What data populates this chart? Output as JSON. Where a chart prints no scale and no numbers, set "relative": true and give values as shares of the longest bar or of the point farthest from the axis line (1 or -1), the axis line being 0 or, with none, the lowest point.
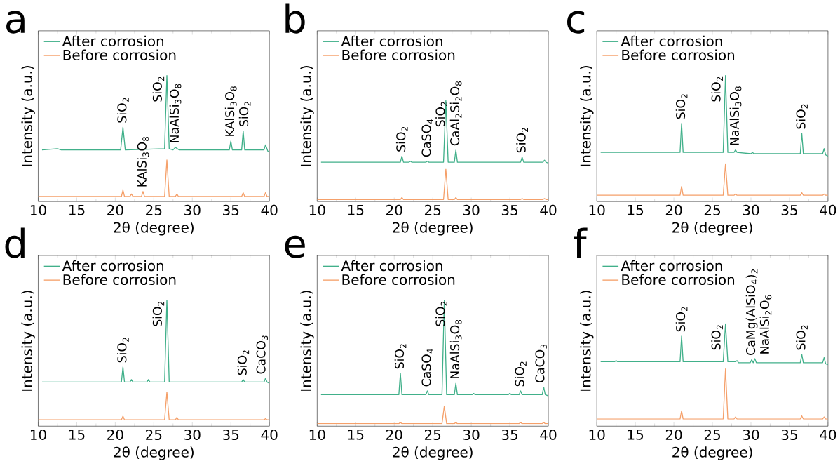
{
  "chart_data": [
    {
      "type": "line",
      "title": "a",
      "xlabel": "2θ (degree)",
      "ylabel": "Intensity (a.u.)",
      "relative": true,
      "xlim": [
        10,
        40
      ],
      "xticks": [
        10,
        15,
        20,
        25,
        30,
        35,
        40
      ],
      "legend": "top left",
      "series": [
        {
          "name": "After corrosion",
          "color": "#41b08a",
          "x": [
            10.5,
            12.5,
            13,
            20.7,
            21.0,
            21.3,
            26.4,
            26.7,
            27.0,
            27.5,
            27.8,
            28.3,
            34.8,
            35.0,
            35.2,
            36.4,
            36.6,
            36.8,
            39.3,
            39.5,
            39.8,
            40
          ],
          "values": [
            0.41,
            0.42,
            0.41,
            0.41,
            0.59,
            0.41,
            0.42,
            1.0,
            0.42,
            0.41,
            0.43,
            0.41,
            0.41,
            0.48,
            0.41,
            0.41,
            0.56,
            0.41,
            0.41,
            0.45,
            0.4,
            0.39
          ]
        },
        {
          "name": "Before corrosion",
          "color": "#f5a06a",
          "x": [
            10,
            20.8,
            21.0,
            21.2,
            21.9,
            22.1,
            22.3,
            23.4,
            23.6,
            23.8,
            26.4,
            26.7,
            27.0,
            27.8,
            28.0,
            28.2,
            36.4,
            36.6,
            36.8,
            39.3,
            39.5,
            39.7,
            40
          ],
          "values": [
            0.04,
            0.04,
            0.09,
            0.04,
            0.04,
            0.06,
            0.04,
            0.04,
            0.08,
            0.04,
            0.04,
            0.33,
            0.04,
            0.04,
            0.06,
            0.04,
            0.04,
            0.07,
            0.04,
            0.04,
            0.07,
            0.04,
            0.04
          ]
        }
      ],
      "annotations": [
        {
          "text": "SiO$_{2}$",
          "x": 21.0,
          "y": 0.59
        },
        {
          "text": "KAlSi$_{3}$O$_{8}$",
          "x": 23.6,
          "y": 0.08
        },
        {
          "text": "SiO$_{2}$",
          "x": 26.7,
          "y": 1.0
        },
        {
          "text": "NaAlSi$_{3}$O$_{8}$",
          "x": 27.8,
          "y": 0.43
        },
        {
          "text": "KAlSi$_{3}$O$_{8}$",
          "x": 35.0,
          "y": 0.48
        },
        {
          "text": "SiO$_{2}$",
          "x": 36.6,
          "y": 0.56
        }
      ]
    },
    {
      "type": "line",
      "title": "b",
      "xlabel": "2θ (degree)",
      "ylabel": "Intensity (a.u.)",
      "relative": true,
      "xlim": [
        10,
        40
      ],
      "xticks": [
        10,
        15,
        20,
        25,
        30,
        35,
        40
      ],
      "legend": "top left",
      "series": [
        {
          "name": "After corrosion",
          "color": "#41b08a",
          "x": [
            10.5,
            20.8,
            21.0,
            21.2,
            21.9,
            22.1,
            22.3,
            24.1,
            24.3,
            24.5,
            26.4,
            26.7,
            27.0,
            27.8,
            28.0,
            28.2,
            36.4,
            36.6,
            36.8,
            39.3,
            39.5,
            39.7,
            40
          ],
          "values": [
            0.39,
            0.39,
            0.45,
            0.39,
            0.39,
            0.4,
            0.39,
            0.39,
            0.4,
            0.39,
            0.39,
            1.0,
            0.39,
            0.39,
            0.51,
            0.39,
            0.39,
            0.44,
            0.39,
            0.39,
            0.41,
            0.39,
            0.38
          ]
        },
        {
          "name": "Before corrosion",
          "color": "#f5a06a",
          "x": [
            10,
            20.8,
            21.0,
            21.2,
            26.4,
            26.7,
            27.0,
            27.8,
            28.0,
            28.2,
            36.4,
            36.6,
            36.8,
            39.3,
            39.5,
            39.7,
            40
          ],
          "values": [
            0.02,
            0.02,
            0.04,
            0.02,
            0.02,
            0.32,
            0.02,
            0.02,
            0.04,
            0.02,
            0.02,
            0.03,
            0.02,
            0.02,
            0.03,
            0.02,
            0.02
          ]
        }
      ],
      "annotations": [
        {
          "text": "SiO$_{2}$",
          "x": 21.0,
          "y": 0.45
        },
        {
          "text": "CaSO$_{4}$",
          "x": 24.3,
          "y": 0.4
        },
        {
          "text": "SiO$_{2}$",
          "x": 26.7,
          "y": 1.0
        },
        {
          "text": "CaAl$_{2}$Si$_{2}$O$_{8}$",
          "x": 28.0,
          "y": 0.51
        },
        {
          "text": "SiO$_{2}$",
          "x": 36.6,
          "y": 0.44
        }
      ]
    },
    {
      "type": "line",
      "title": "c",
      "xlabel": "2θ (degree)",
      "ylabel": "Intensity (a.u.)",
      "relative": true,
      "xlim": [
        10,
        40
      ],
      "xticks": [
        10,
        15,
        20,
        25,
        30,
        35,
        40
      ],
      "legend": "top left",
      "series": [
        {
          "name": "After corrosion",
          "color": "#41b08a",
          "x": [
            10.5,
            20.8,
            21.0,
            21.2,
            26.4,
            26.7,
            27.0,
            27.8,
            28.0,
            28.2,
            30.0,
            30.2,
            30.4,
            36.4,
            36.6,
            36.8,
            39.3,
            39.5,
            39.7,
            40
          ],
          "values": [
            0.39,
            0.39,
            0.62,
            0.39,
            0.39,
            1.0,
            0.39,
            0.39,
            0.41,
            0.39,
            0.38,
            0.39,
            0.38,
            0.38,
            0.54,
            0.38,
            0.38,
            0.42,
            0.37,
            0.36
          ]
        },
        {
          "name": "Before corrosion",
          "color": "#f5a06a",
          "x": [
            10,
            20.8,
            21.0,
            21.2,
            26.4,
            26.7,
            27.0,
            27.8,
            28.0,
            28.2,
            36.4,
            36.6,
            36.8,
            39.3,
            39.5,
            39.7,
            40
          ],
          "values": [
            0.05,
            0.05,
            0.12,
            0.05,
            0.05,
            0.3,
            0.05,
            0.05,
            0.06,
            0.05,
            0.05,
            0.07,
            0.05,
            0.05,
            0.06,
            0.05,
            0.05
          ]
        }
      ],
      "annotations": [
        {
          "text": "SiO$_{2}$",
          "x": 21.0,
          "y": 0.62
        },
        {
          "text": "SiO$_{2}$",
          "x": 26.7,
          "y": 1.0
        },
        {
          "text": "NaAlSi$_{3}$O$_{8}$",
          "x": 28.0,
          "y": 0.41
        },
        {
          "text": "SiO$_{2}$",
          "x": 36.6,
          "y": 0.54
        }
      ]
    },
    {
      "type": "line",
      "title": "d",
      "xlabel": "2θ (degree)",
      "ylabel": "Intensity (a.u.)",
      "relative": true,
      "xlim": [
        10,
        40
      ],
      "xticks": [
        10,
        15,
        20,
        25,
        30,
        35,
        40
      ],
      "legend": "top left",
      "series": [
        {
          "name": "After corrosion",
          "color": "#41b08a",
          "x": [
            10.5,
            20.8,
            21.0,
            21.2,
            21.9,
            22.1,
            22.3,
            24.1,
            24.3,
            24.5,
            26.4,
            26.7,
            27.0,
            36.4,
            36.6,
            36.8,
            39.3,
            39.5,
            39.7,
            40
          ],
          "values": [
            0.35,
            0.35,
            0.47,
            0.35,
            0.35,
            0.37,
            0.35,
            0.35,
            0.37,
            0.35,
            0.35,
            1.0,
            0.35,
            0.35,
            0.37,
            0.35,
            0.35,
            0.38,
            0.35,
            0.34
          ]
        },
        {
          "name": "Before corrosion",
          "color": "#f5a06a",
          "x": [
            10,
            20.8,
            21.0,
            21.2,
            26.4,
            26.7,
            27.0,
            27.8,
            28.0,
            28.2,
            39.3,
            39.5,
            39.7,
            40
          ],
          "values": [
            0.05,
            0.05,
            0.08,
            0.05,
            0.05,
            0.27,
            0.05,
            0.05,
            0.07,
            0.05,
            0.05,
            0.06,
            0.05,
            0.05
          ]
        }
      ],
      "annotations": [
        {
          "text": "SiO$_{2}$",
          "x": 21.0,
          "y": 0.47
        },
        {
          "text": "SiO$_{2}$",
          "x": 26.7,
          "y": 1.0
        },
        {
          "text": "SiO$_{2}$",
          "x": 36.6,
          "y": 0.37
        },
        {
          "text": "CaCO$_{3}$",
          "x": 39.5,
          "y": 0.38
        }
      ]
    },
    {
      "type": "line",
      "title": "e",
      "xlabel": "2θ (degree)",
      "ylabel": "Intensity (a.u.)",
      "relative": true,
      "xlim": [
        10,
        40
      ],
      "xticks": [
        10,
        15,
        20,
        25,
        30,
        35,
        40
      ],
      "legend": "top left",
      "series": [
        {
          "name": "After corrosion",
          "color": "#41b08a",
          "x": [
            10.5,
            20.6,
            20.8,
            21.0,
            24.1,
            24.3,
            24.5,
            26.2,
            26.5,
            26.8,
            27.8,
            28.0,
            28.2,
            30.1,
            30.3,
            30.5,
            34.8,
            35.0,
            35.2,
            36.2,
            36.4,
            36.6,
            39.2,
            39.4,
            39.6,
            40
          ],
          "values": [
            0.25,
            0.25,
            0.42,
            0.25,
            0.25,
            0.28,
            0.25,
            0.25,
            1.0,
            0.25,
            0.25,
            0.34,
            0.25,
            0.25,
            0.26,
            0.25,
            0.25,
            0.26,
            0.25,
            0.25,
            0.28,
            0.25,
            0.25,
            0.31,
            0.25,
            0.24
          ]
        },
        {
          "name": "Before corrosion",
          "color": "#f5a06a",
          "x": [
            10,
            20.6,
            20.8,
            21.0,
            26.2,
            26.5,
            26.8,
            27.8,
            28.0,
            28.2,
            36.2,
            36.4,
            36.6,
            39.2,
            39.4,
            39.6,
            40
          ],
          "values": [
            0.02,
            0.02,
            0.03,
            0.02,
            0.02,
            0.16,
            0.02,
            0.02,
            0.03,
            0.02,
            0.02,
            0.03,
            0.02,
            0.02,
            0.03,
            0.02,
            0.02
          ]
        }
      ],
      "annotations": [
        {
          "text": "SiO$_{2}$",
          "x": 20.8,
          "y": 0.42
        },
        {
          "text": "CaSO$_{4}$",
          "x": 24.3,
          "y": 0.28
        },
        {
          "text": "SiO$_{2}$",
          "x": 26.5,
          "y": 1.0
        },
        {
          "text": "NaAlSi$_{3}$O$_{8}$",
          "x": 28.0,
          "y": 0.34
        },
        {
          "text": "SiO$_{2}$",
          "x": 36.4,
          "y": 0.28
        },
        {
          "text": "CaCO$_{3}$",
          "x": 39.4,
          "y": 0.31
        }
      ]
    },
    {
      "type": "line",
      "title": "f",
      "xlabel": "2θ (degree)",
      "ylabel": "Intensity (a.u.)",
      "relative": true,
      "xlim": [
        10,
        40
      ],
      "xticks": [
        10,
        15,
        20,
        25,
        30,
        35,
        40
      ],
      "legend": "top left",
      "series": [
        {
          "name": "After corrosion",
          "color": "#41b08a",
          "x": [
            10.5,
            12.3,
            12.5,
            12.7,
            20.8,
            21.0,
            21.2,
            26.4,
            26.7,
            27.0,
            28.0,
            28.2,
            28.4,
            29.9,
            30.1,
            30.3,
            30.5,
            30.7,
            36.4,
            36.6,
            36.8,
            39.3,
            39.5,
            39.7,
            40
          ],
          "values": [
            0.63,
            0.63,
            0.64,
            0.63,
            0.63,
            0.88,
            0.63,
            0.63,
            1.0,
            0.63,
            0.63,
            0.64,
            0.62,
            0.62,
            0.65,
            0.62,
            0.66,
            0.62,
            0.62,
            0.7,
            0.62,
            0.62,
            0.67,
            0.61,
            0.6
          ]
        },
        {
          "name": "Before corrosion",
          "color": "#f5a06a",
          "x": [
            10,
            20.8,
            21.0,
            21.2,
            26.4,
            26.7,
            27.0,
            27.8,
            28.0,
            28.2,
            36.4,
            36.6,
            36.8,
            39.3,
            39.5,
            39.7,
            40
          ],
          "values": [
            0.07,
            0.07,
            0.15,
            0.07,
            0.07,
            0.56,
            0.07,
            0.07,
            0.09,
            0.07,
            0.07,
            0.1,
            0.07,
            0.07,
            0.09,
            0.07,
            0.07
          ]
        }
      ],
      "annotations": [
        {
          "text": "SiO$_{2}$",
          "x": 21.0,
          "y": 0.88
        },
        {
          "text": "SiO$_{2}$",
          "x": 26.7,
          "y": 1.0
        },
        {
          "text": "CaMg(AlSiO$_{4}$)$_{2}$",
          "x": 30.1,
          "y": 0.65
        },
        {
          "text": "NaAlSi$_{2}$O$_{6}$",
          "x": 30.5,
          "y": 0.66
        },
        {
          "text": "SiO$_{2}$",
          "x": 36.6,
          "y": 0.7
        }
      ]
    }
  ]
}
